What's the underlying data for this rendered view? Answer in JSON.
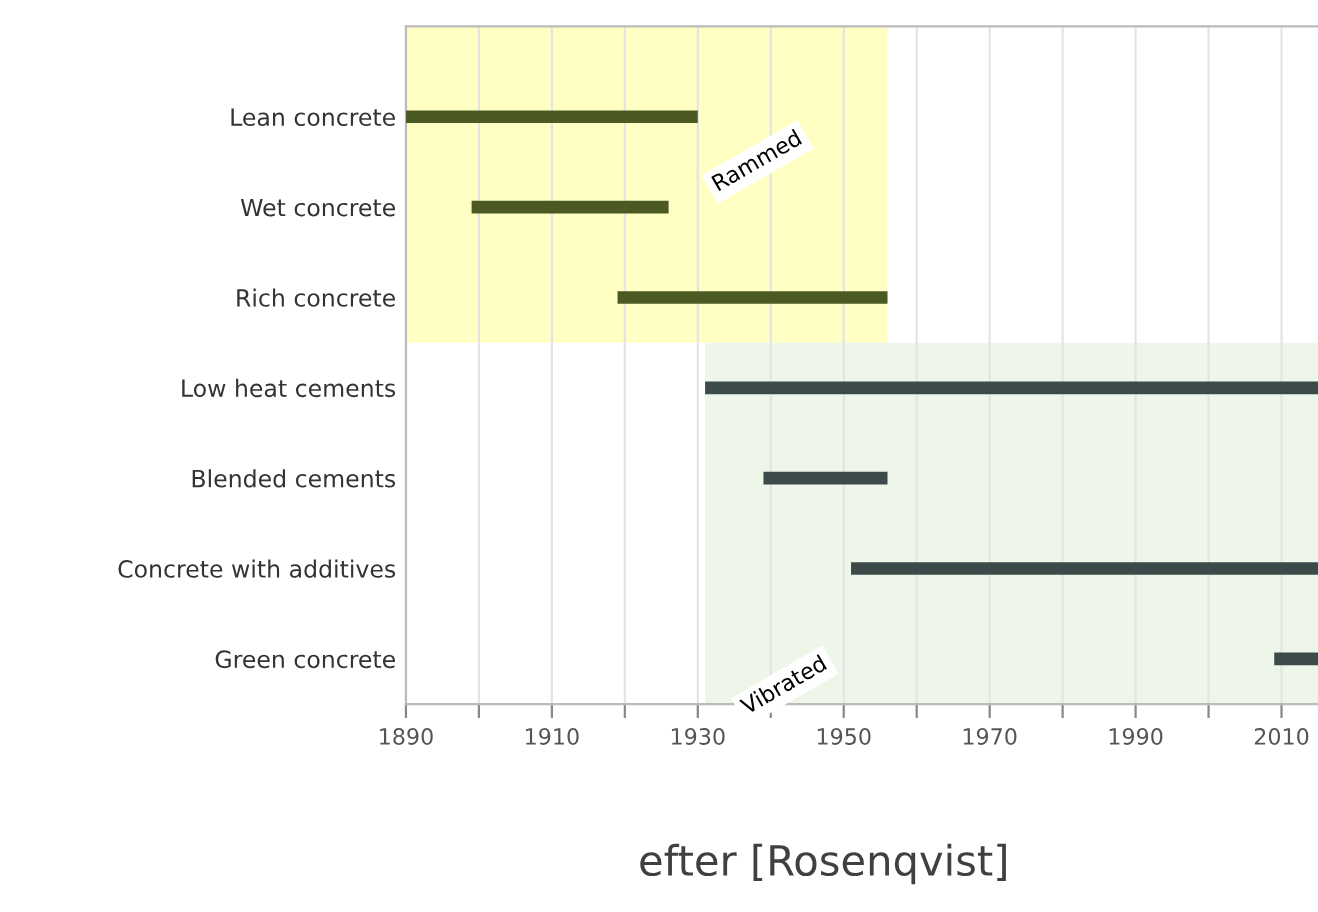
{
  "chart_data": {
    "type": "bar",
    "orientation": "horizontal",
    "categories": [
      "Lean concrete",
      "Wet concrete",
      "Rich concrete",
      "Low heat cements",
      "Blended cements",
      "Concrete with additives",
      "Green concrete"
    ],
    "base": [
      1890,
      1899,
      1919,
      1931,
      1939,
      1951,
      2009
    ],
    "values": [
      40,
      27,
      37,
      84,
      17,
      64,
      6
    ],
    "colors": [
      "#4b5a22",
      "#4b5a22",
      "#4b5a22",
      "#3c4a4a",
      "#3c4a4a",
      "#3c4a4a",
      "#3c4a4a"
    ],
    "xlim": [
      1890,
      2015
    ],
    "xticks": [
      1890,
      {
        "value": 1900,
        "label": null
      },
      1910,
      {
        "value": 1920,
        "label": null
      },
      1930,
      {
        "value": 1940,
        "label": null
      },
      1950,
      {
        "value": 1960,
        "label": null
      },
      1970,
      {
        "value": 1980,
        "label": null
      },
      1990,
      {
        "value": 2000,
        "label": null
      },
      2010
    ],
    "bands": [
      {
        "axis": "x",
        "from": 1890,
        "to": 1956,
        "label": "Rammed",
        "color": "#ffffc4"
      },
      {
        "axis": "x",
        "from": 1931,
        "to": 2015,
        "label": "Vibrated",
        "color": "#eef6ea"
      }
    ],
    "grid": "x",
    "annotations": [
      "efter [Rosenqvist]"
    ]
  }
}
